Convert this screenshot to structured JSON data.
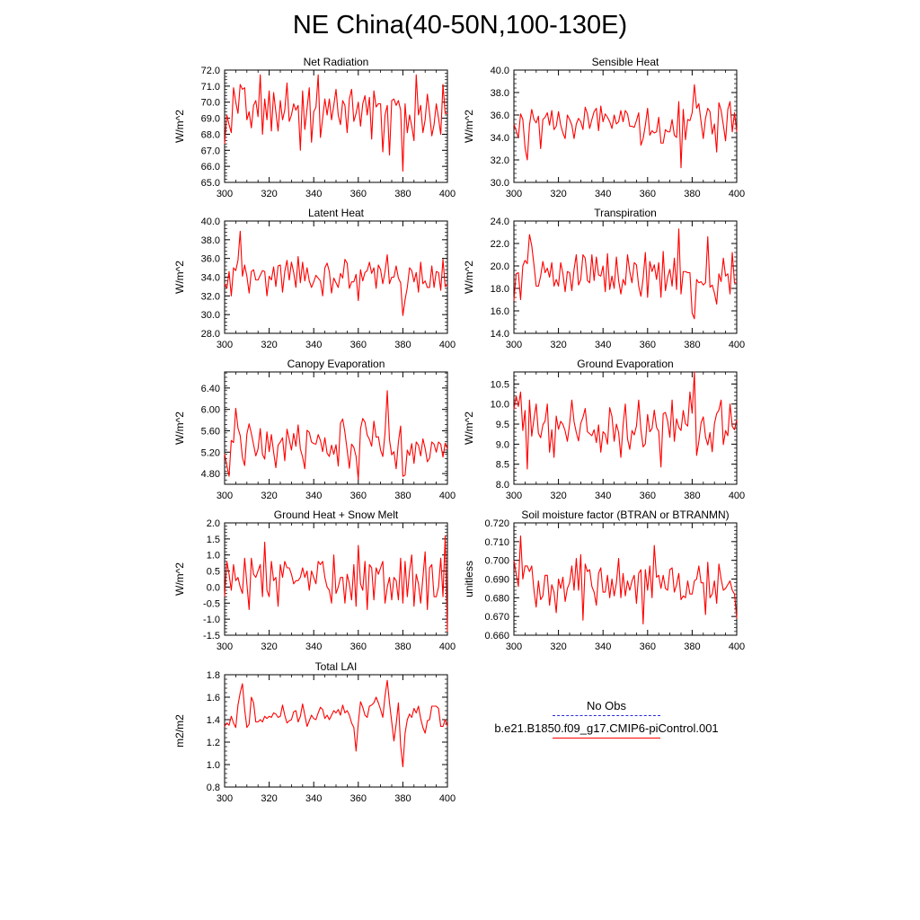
{
  "title": "NE China(40-50N,100-130E)",
  "colors": {
    "model": "#ff0000",
    "obs": "#2a2ad8",
    "axis": "#000000"
  },
  "legend": {
    "obs_label": "No Obs",
    "model_label": "b.e21.B1850.f09_g17.CMIP6-piControl.001"
  },
  "chart_data": [
    {
      "type": "line",
      "title": "Net Radiation",
      "ylabel": "W/m^2",
      "xlim": [
        300,
        400
      ],
      "ylim": [
        65,
        72
      ],
      "xticks": [
        300,
        320,
        340,
        360,
        380,
        400
      ],
      "yticks": [
        65,
        66,
        67,
        68,
        69,
        70,
        71,
        72
      ],
      "ytick_labels": [
        "65.0",
        "66.0",
        "67.0",
        "68.0",
        "69.0",
        "70.0",
        "71.0",
        "72.0"
      ],
      "x_start": 300,
      "values": [
        67.4,
        69.2,
        68.6,
        68.1,
        70.9,
        70.0,
        69.3,
        71.1,
        70.8,
        70.9,
        68.9,
        69.4,
        68.4,
        69.8,
        70.1,
        69.1,
        71.7,
        68.0,
        70.2,
        68.9,
        70.7,
        68.2,
        70.6,
        69.4,
        68.2,
        70.1,
        68.9,
        69.5,
        71.2,
        68.8,
        69.2,
        69.9,
        69.5,
        69.8,
        67.0,
        70.7,
        68.3,
        69.6,
        70.9,
        67.5,
        69.4,
        69.7,
        71.7,
        67.8,
        69.0,
        70.2,
        69.2,
        70.2,
        68.9,
        69.8,
        70.8,
        69.2,
        68.6,
        70.1,
        69.8,
        68.1,
        70.2,
        70.8,
        68.8,
        69.3,
        70.0,
        68.5,
        69.9,
        70.4,
        69.2,
        70.3,
        67.7,
        70.7,
        69.7,
        69.9,
        69.9,
        66.9,
        69.2,
        69.8,
        66.7,
        70.1,
        70.2,
        69.8,
        70.1,
        69.5,
        65.7,
        69.9,
        68.1,
        69.2,
        68.5,
        67.6,
        71.7,
        69.2,
        69.8,
        68.1,
        68.9,
        70.5,
        69.3,
        67.9,
        68.6,
        69.9,
        69.0,
        68.0,
        71.1,
        69.3,
        69.3
      ]
    },
    {
      "type": "line",
      "title": "Sensible Heat",
      "ylabel": "W/m^2",
      "xlim": [
        300,
        400
      ],
      "ylim": [
        30,
        40
      ],
      "xticks": [
        300,
        320,
        340,
        360,
        380,
        400
      ],
      "yticks": [
        30,
        32,
        34,
        36,
        38,
        40
      ],
      "ytick_labels": [
        "30.0",
        "32.0",
        "34.0",
        "36.0",
        "38.0",
        "40.0"
      ],
      "x_start": 300,
      "values": [
        35.2,
        34.6,
        34.0,
        36.1,
        35.6,
        33.1,
        32.0,
        35.1,
        36.5,
        35.6,
        35.3,
        35.9,
        33.0,
        35.6,
        35.8,
        36.2,
        35.1,
        36.4,
        34.7,
        35.0,
        36.3,
        35.1,
        34.4,
        33.9,
        36.0,
        35.6,
        35.1,
        33.9,
        35.2,
        35.7,
        35.4,
        34.7,
        36.7,
        36.1,
        34.8,
        35.6,
        36.3,
        36.6,
        34.6,
        36.8,
        35.4,
        36.1,
        35.8,
        35.4,
        34.8,
        36.0,
        35.2,
        35.4,
        36.4,
        35.4,
        36.4,
        36.1,
        35.0,
        35.0,
        34.9,
        35.5,
        36.2,
        33.3,
        33.9,
        35.1,
        36.6,
        34.2,
        34.6,
        34.4,
        34.5,
        35.8,
        33.5,
        33.5,
        34.7,
        34.5,
        34.5,
        35.6,
        34.2,
        34.0,
        37.2,
        31.3,
        36.5,
        33.8,
        35.6,
        35.5,
        36.2,
        38.7,
        36.6,
        37.0,
        35.4,
        33.9,
        35.7,
        36.6,
        36.3,
        34.3,
        35.2,
        32.7,
        37.1,
        36.4,
        35.1,
        33.7,
        36.5,
        37.2,
        34.5,
        36.2,
        34.5
      ]
    },
    {
      "type": "line",
      "title": "Latent Heat",
      "ylabel": "W/m^2",
      "xlim": [
        300,
        400
      ],
      "ylim": [
        28,
        40
      ],
      "xticks": [
        300,
        320,
        340,
        360,
        380,
        400
      ],
      "yticks": [
        28,
        30,
        32,
        34,
        36,
        38,
        40
      ],
      "ytick_labels": [
        "28.0",
        "30.0",
        "32.0",
        "34.0",
        "36.0",
        "38.0",
        "40.0"
      ],
      "x_start": 300,
      "values": [
        33.3,
        32.8,
        34.6,
        32.0,
        35.0,
        34.7,
        35.8,
        38.9,
        34.1,
        35.3,
        34.1,
        32.3,
        34.6,
        34.8,
        33.7,
        33.7,
        34.2,
        34.7,
        34.6,
        32.0,
        34.1,
        33.7,
        35.1,
        33.0,
        35.2,
        35.3,
        32.4,
        34.6,
        35.8,
        33.7,
        35.6,
        34.5,
        32.9,
        36.2,
        33.4,
        35.6,
        33.6,
        35.0,
        33.6,
        32.9,
        33.5,
        34.2,
        33.9,
        33.6,
        32.0,
        35.0,
        35.5,
        34.6,
        32.3,
        33.9,
        33.4,
        32.9,
        34.4,
        33.9,
        35.9,
        35.5,
        32.8,
        33.5,
        33.5,
        34.3,
        31.5,
        34.8,
        33.6,
        34.5,
        34.7,
        35.6,
        34.4,
        35.0,
        32.8,
        35.3,
        34.8,
        33.3,
        34.6,
        36.4,
        33.3,
        34.0,
        34.0,
        35.2,
        33.9,
        33.4,
        29.9,
        31.6,
        32.9,
        35.0,
        34.7,
        33.5,
        34.5,
        32.4,
        35.6,
        33.3,
        33.6,
        32.9,
        32.9,
        35.2,
        32.9,
        34.6,
        34.5,
        32.6,
        35.9,
        33.0,
        33.2
      ]
    },
    {
      "type": "line",
      "title": "Transpiration",
      "ylabel": "W/m^2",
      "xlim": [
        300,
        400
      ],
      "ylim": [
        14,
        24
      ],
      "xticks": [
        300,
        320,
        340,
        360,
        380,
        400
      ],
      "yticks": [
        14,
        16,
        18,
        20,
        22,
        24
      ],
      "ytick_labels": [
        "14.0",
        "16.0",
        "18.0",
        "20.0",
        "22.0",
        "24.0"
      ],
      "x_start": 300,
      "values": [
        16.9,
        19.3,
        19.4,
        17.0,
        20.0,
        20.5,
        20.2,
        22.8,
        21.8,
        20.1,
        18.2,
        18.2,
        19.1,
        20.4,
        19.4,
        19.8,
        19.0,
        20.3,
        18.2,
        18.8,
        18.2,
        20.3,
        19.3,
        17.7,
        19.5,
        19.4,
        17.8,
        19.7,
        21.0,
        18.3,
        18.8,
        21.0,
        20.7,
        18.7,
        18.5,
        21.0,
        18.7,
        20.8,
        19.2,
        19.1,
        20.0,
        17.7,
        21.1,
        17.9,
        19.1,
        18.0,
        20.8,
        18.7,
        17.5,
        18.8,
        18.3,
        21.0,
        19.5,
        18.5,
        20.3,
        20.1,
        18.2,
        17.3,
        18.9,
        21.2,
        17.2,
        20.4,
        19.5,
        20.1,
        18.8,
        20.3,
        17.2,
        21.3,
        17.8,
        19.0,
        19.7,
        18.2,
        20.7,
        17.9,
        23.3,
        17.5,
        19.5,
        19.5,
        19.4,
        19.4,
        15.8,
        15.3,
        18.8,
        18.5,
        18.6,
        18.3,
        18.5,
        22.6,
        18.1,
        18.3,
        17.6,
        16.6,
        19.3,
        18.6,
        20.7,
        19.1,
        19.3,
        17.5,
        21.2,
        18.5,
        18.5
      ]
    },
    {
      "type": "line",
      "title": "Canopy Evaporation",
      "ylabel": "W/m^2",
      "xlim": [
        300,
        400
      ],
      "ylim": [
        4.6,
        6.7
      ],
      "xticks": [
        300,
        320,
        340,
        360,
        380,
        400
      ],
      "yticks": [
        4.8,
        5.2,
        5.6,
        6.0,
        6.4
      ],
      "ytick_labels": [
        "4.80",
        "5.20",
        "5.60",
        "6.00",
        "6.40"
      ],
      "x_start": 300,
      "values": [
        5.17,
        4.95,
        4.75,
        5.42,
        5.38,
        6.02,
        5.65,
        5.51,
        5.1,
        4.95,
        5.54,
        5.73,
        5.55,
        5.34,
        5.13,
        5.26,
        5.64,
        5.16,
        5.07,
        5.58,
        5.21,
        5.53,
        5.2,
        4.91,
        5.33,
        5.39,
        5.47,
        5.04,
        5.63,
        5.44,
        5.24,
        5.55,
        5.31,
        5.71,
        5.26,
        5.11,
        4.89,
        5.61,
        5.57,
        5.39,
        5.36,
        5.35,
        5.53,
        5.42,
        5.21,
        5.47,
        5.18,
        5.12,
        5.33,
        5.16,
        5.34,
        4.94,
        5.74,
        5.82,
        5.57,
        5.24,
        4.9,
        5.35,
        5.29,
        5.12,
        4.69,
        5.64,
        5.83,
        5.76,
        5.52,
        5.44,
        5.31,
        5.78,
        5.48,
        5.49,
        5.24,
        5.12,
        5.56,
        6.35,
        5.43,
        5.15,
        5.21,
        4.89,
        5.39,
        5.69,
        4.75,
        4.77,
        5.24,
        5.14,
        5.36,
        4.99,
        5.39,
        5.33,
        5.13,
        5.45,
        5.27,
        5.02,
        5.09,
        5.39,
        5.35,
        5.2,
        5.39,
        5.35,
        5.11,
        5.37,
        5.26
      ]
    },
    {
      "type": "line",
      "title": "Ground Evaporation",
      "ylabel": "W/m^2",
      "xlim": [
        300,
        400
      ],
      "ylim": [
        8.0,
        10.8
      ],
      "xticks": [
        300,
        320,
        340,
        360,
        380,
        400
      ],
      "yticks": [
        8.0,
        8.5,
        9.0,
        9.5,
        10.0,
        10.5
      ],
      "ytick_labels": [
        "8.0",
        "8.5",
        "9.0",
        "9.5",
        "10.0",
        "10.5"
      ],
      "x_start": 300,
      "values": [
        9.87,
        10.2,
        9.94,
        10.3,
        9.34,
        9.84,
        8.38,
        10.1,
        9.2,
        9.63,
        10.0,
        9.27,
        9.16,
        9.48,
        9.58,
        10.0,
        8.8,
        9.36,
        8.67,
        9.7,
        9.37,
        9.57,
        9.49,
        9.33,
        9.07,
        9.5,
        10.1,
        9.56,
        9.29,
        9.08,
        9.52,
        9.67,
        9.89,
        9.31,
        9.26,
        9.21,
        9.36,
        9.04,
        9.48,
        8.8,
        9.31,
        9.25,
        9.0,
        9.91,
        9.69,
        9.07,
        9.5,
        9.29,
        8.67,
        9.47,
        10.0,
        9.13,
        8.87,
        9.34,
        9.23,
        9.45,
        10.1,
        9.36,
        8.93,
        9.01,
        9.74,
        9.31,
        9.39,
        9.85,
        9.42,
        9.32,
        8.43,
        9.76,
        9.79,
        9.57,
        9.17,
        10.1,
        9.07,
        9.63,
        9.42,
        9.34,
        9.84,
        9.51,
        9.45,
        10.3,
        9.77,
        10.8,
        8.72,
        9.07,
        9.53,
        9.68,
        9.18,
        8.98,
        9.29,
        8.81,
        9.51,
        9.76,
        9.85,
        10.1,
        8.99,
        9.34,
        9.21,
        10.0,
        9.44,
        9.36,
        9.61
      ]
    },
    {
      "type": "line",
      "title": "Ground Heat + Snow Melt",
      "ylabel": "W/m^2",
      "xlim": [
        300,
        400
      ],
      "ylim": [
        -1.5,
        2.0
      ],
      "xticks": [
        300,
        320,
        340,
        360,
        380,
        400
      ],
      "yticks": [
        -1.5,
        -1.0,
        -0.5,
        0.0,
        0.5,
        1.0,
        1.5,
        2.0
      ],
      "ytick_labels": [
        "-1.5",
        "-1.0",
        "-0.5",
        "0.0",
        "0.5",
        "1.0",
        "1.5",
        "2.0"
      ],
      "x_start": 300,
      "values": [
        -0.3,
        0.8,
        0.4,
        -0.1,
        0.7,
        0.2,
        0.3,
        0.0,
        -0.2,
        0.9,
        0.1,
        -0.7,
        0.9,
        0.4,
        0.3,
        0.5,
        0.7,
        -0.3,
        1.4,
        -0.1,
        -0.3,
        0.8,
        0.2,
        0.3,
        -0.6,
        0.7,
        0.3,
        0.8,
        0.6,
        0.6,
        0.4,
        0.1,
        0.2,
        0.2,
        0.3,
        0.6,
        0.3,
        0.5,
        -0.1,
        0.5,
        0.3,
        0.1,
        0.8,
        0.7,
        0.8,
        0.3,
        0.0,
        -0.1,
        -0.5,
        1.0,
        -0.2,
        0.0,
        0.3,
        0.3,
        -0.5,
        0.4,
        0.1,
        -0.4,
        0.7,
        -0.6,
        1.3,
        0.1,
        -0.1,
        0.8,
        -0.7,
        0.7,
        0.6,
        -0.4,
        0.6,
        0.4,
        0.6,
        0.8,
        -0.5,
        0.0,
        0.3,
        -0.4,
        0.3,
        0.2,
        -0.4,
        0.9,
        -0.5,
        0.8,
        -0.3,
        0.5,
        1.0,
        -0.6,
        0.4,
        0.1,
        -0.5,
        0.3,
        1.1,
        -0.7,
        0.6,
        0.7,
        -0.3,
        -0.3,
        0.0,
        0.9,
        -0.3,
        1.6,
        -1.4
      ]
    },
    {
      "type": "line",
      "title": "Soil moisture factor (BTRAN or BTRANMN)",
      "ylabel": "unitless",
      "xlim": [
        300,
        400
      ],
      "ylim": [
        0.66,
        0.72
      ],
      "xticks": [
        300,
        320,
        340,
        360,
        380,
        400
      ],
      "yticks": [
        0.66,
        0.67,
        0.68,
        0.69,
        0.7,
        0.71,
        0.72
      ],
      "ytick_labels": [
        "0.660",
        "0.670",
        "0.680",
        "0.690",
        "0.700",
        "0.710",
        "0.720"
      ],
      "x_start": 300,
      "values": [
        0.7,
        0.693,
        0.686,
        0.713,
        0.69,
        0.697,
        0.697,
        0.694,
        0.697,
        0.684,
        0.675,
        0.689,
        0.679,
        0.681,
        0.692,
        0.692,
        0.676,
        0.687,
        0.683,
        0.672,
        0.69,
        0.685,
        0.691,
        0.678,
        0.685,
        0.688,
        0.697,
        0.684,
        0.701,
        0.684,
        0.703,
        0.668,
        0.698,
        0.694,
        0.695,
        0.686,
        0.683,
        0.676,
        0.693,
        0.696,
        0.683,
        0.683,
        0.692,
        0.68,
        0.69,
        0.681,
        0.688,
        0.701,
        0.68,
        0.693,
        0.681,
        0.689,
        0.684,
        0.689,
        0.692,
        0.677,
        0.693,
        0.695,
        0.666,
        0.695,
        0.684,
        0.697,
        0.68,
        0.708,
        0.691,
        0.692,
        0.685,
        0.692,
        0.685,
        0.684,
        0.695,
        0.696,
        0.683,
        0.687,
        0.693,
        0.679,
        0.681,
        0.68,
        0.689,
        0.682,
        0.682,
        0.689,
        0.69,
        0.697,
        0.688,
        0.688,
        0.671,
        0.699,
        0.68,
        0.682,
        0.689,
        0.677,
        0.698,
        0.69,
        0.684,
        0.685,
        0.687,
        0.689,
        0.684,
        0.682,
        0.669
      ]
    },
    {
      "type": "line",
      "title": "Total LAI",
      "ylabel": "m2/m2",
      "xlim": [
        300,
        400
      ],
      "ylim": [
        0.8,
        1.8
      ],
      "xticks": [
        300,
        320,
        340,
        360,
        380,
        400
      ],
      "yticks": [
        0.8,
        1.0,
        1.2,
        1.4,
        1.6,
        1.8
      ],
      "ytick_labels": [
        "0.8",
        "1.0",
        "1.2",
        "1.4",
        "1.6",
        "1.8"
      ],
      "x_start": 300,
      "values": [
        1.34,
        1.37,
        1.35,
        1.43,
        1.37,
        1.33,
        1.53,
        1.64,
        1.72,
        1.49,
        1.33,
        1.36,
        1.6,
        1.55,
        1.38,
        1.38,
        1.4,
        1.38,
        1.43,
        1.41,
        1.43,
        1.42,
        1.46,
        1.45,
        1.42,
        1.43,
        1.53,
        1.44,
        1.37,
        1.39,
        1.4,
        1.47,
        1.48,
        1.38,
        1.43,
        1.54,
        1.44,
        1.34,
        1.39,
        1.44,
        1.41,
        1.4,
        1.46,
        1.51,
        1.49,
        1.41,
        1.44,
        1.4,
        1.44,
        1.48,
        1.46,
        1.49,
        1.44,
        1.53,
        1.46,
        1.48,
        1.44,
        1.37,
        1.33,
        1.12,
        1.37,
        1.56,
        1.51,
        1.44,
        1.42,
        1.52,
        1.53,
        1.55,
        1.6,
        1.55,
        1.49,
        1.42,
        1.61,
        1.75,
        1.55,
        1.38,
        1.21,
        1.36,
        1.55,
        1.17,
        0.98,
        1.28,
        1.4,
        1.45,
        1.42,
        1.5,
        1.46,
        1.52,
        1.41,
        1.33,
        1.28,
        1.39,
        1.4,
        1.52,
        1.52,
        1.52,
        1.5,
        1.34,
        1.34,
        1.4,
        1.34
      ]
    }
  ]
}
